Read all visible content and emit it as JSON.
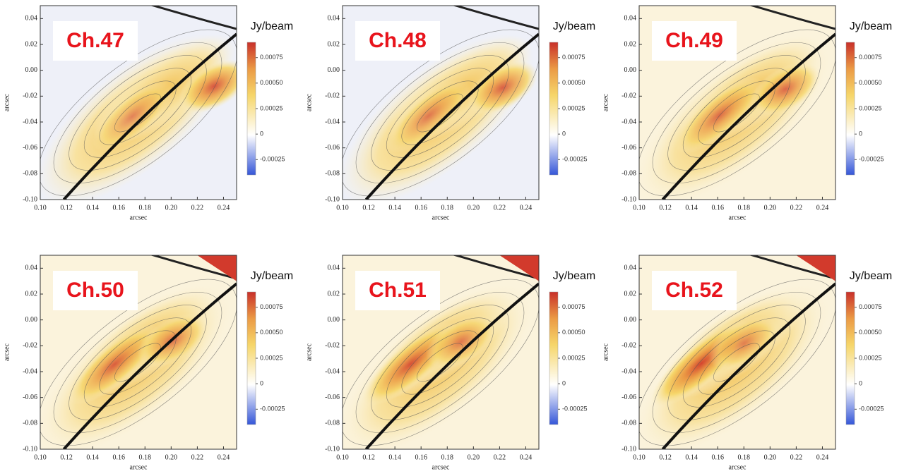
{
  "chart_data": [
    {
      "type": "contour",
      "title": "Ch.47",
      "xlabel": "arcsec",
      "ylabel": "arcsec",
      "colorbar_label": "Jy/beam",
      "xlim": [
        0.1,
        0.25
      ],
      "xticks": [
        {
          "value": 0.1,
          "label": "0.10"
        },
        0.12,
        0.14,
        0.16,
        0.18,
        {
          "value": 0.2,
          "label": "0.20"
        },
        0.22,
        0.24
      ],
      "ylim": [
        -0.1,
        0.05
      ],
      "yticks": [
        {
          "value": -0.1,
          "label": "-0.10"
        },
        -0.08,
        -0.06,
        -0.04,
        -0.02,
        {
          "value": 0,
          "label": "0.00"
        },
        0.02,
        0.04
      ],
      "clim": [
        -0.0004,
        0.0009
      ],
      "cticks": [
        -0.00025,
        0,
        0.00025,
        {
          "value": 0.0005,
          "label": "0.00050"
        },
        0.00075
      ]
    },
    {
      "type": "contour",
      "title": "Ch.48",
      "xlabel": "arcsec",
      "ylabel": "arcsec",
      "colorbar_label": "Jy/beam",
      "xlim": [
        0.1,
        0.25
      ],
      "xticks": [
        {
          "value": 0.1,
          "label": "0.10"
        },
        0.12,
        0.14,
        0.16,
        0.18,
        {
          "value": 0.2,
          "label": "0.20"
        },
        0.22,
        0.24
      ],
      "ylim": [
        -0.1,
        0.05
      ],
      "yticks": [
        {
          "value": -0.1,
          "label": "-0.10"
        },
        -0.08,
        -0.06,
        -0.04,
        -0.02,
        {
          "value": 0,
          "label": "0.00"
        },
        0.02,
        0.04
      ],
      "clim": [
        -0.0004,
        0.0009
      ],
      "cticks": [
        -0.00025,
        0,
        0.00025,
        {
          "value": 0.0005,
          "label": "0.00050"
        },
        0.00075
      ]
    },
    {
      "type": "contour",
      "title": "Ch.49",
      "xlabel": "arcsec",
      "ylabel": "arcsec",
      "colorbar_label": "Jy/beam",
      "xlim": [
        0.1,
        0.25
      ],
      "xticks": [
        {
          "value": 0.1,
          "label": "0.10"
        },
        0.12,
        0.14,
        0.16,
        0.18,
        {
          "value": 0.2,
          "label": "0.20"
        },
        0.22,
        0.24
      ],
      "ylim": [
        -0.1,
        0.05
      ],
      "yticks": [
        {
          "value": -0.1,
          "label": "-0.10"
        },
        -0.08,
        -0.06,
        -0.04,
        -0.02,
        {
          "value": 0,
          "label": "0.00"
        },
        0.02,
        0.04
      ],
      "clim": [
        -0.0004,
        0.0009
      ],
      "cticks": [
        -0.00025,
        0,
        0.00025,
        {
          "value": 0.0005,
          "label": "0.00050"
        },
        0.00075
      ]
    },
    {
      "type": "contour",
      "title": "Ch.50",
      "xlabel": "arcsec",
      "ylabel": "arcsec",
      "colorbar_label": "Jy/beam",
      "xlim": [
        0.1,
        0.25
      ],
      "xticks": [
        {
          "value": 0.1,
          "label": "0.10"
        },
        0.12,
        0.14,
        0.16,
        0.18,
        {
          "value": 0.2,
          "label": "0.20"
        },
        0.22,
        0.24
      ],
      "ylim": [
        -0.1,
        0.05
      ],
      "yticks": [
        {
          "value": -0.1,
          "label": "-0.10"
        },
        -0.08,
        -0.06,
        -0.04,
        -0.02,
        {
          "value": 0,
          "label": "0.00"
        },
        0.02,
        0.04
      ],
      "clim": [
        -0.0004,
        0.0009
      ],
      "cticks": [
        -0.00025,
        0,
        0.00025,
        {
          "value": 0.0005,
          "label": "0.00050"
        },
        0.00075
      ]
    },
    {
      "type": "contour",
      "title": "Ch.51",
      "xlabel": "arcsec",
      "ylabel": "arcsec",
      "colorbar_label": "Jy/beam",
      "xlim": [
        0.1,
        0.25
      ],
      "xticks": [
        {
          "value": 0.1,
          "label": "0.10"
        },
        0.12,
        0.14,
        0.16,
        0.18,
        {
          "value": 0.2,
          "label": "0.20"
        },
        0.22,
        0.24
      ],
      "ylim": [
        -0.1,
        0.05
      ],
      "yticks": [
        {
          "value": -0.1,
          "label": "-0.10"
        },
        -0.08,
        -0.06,
        -0.04,
        -0.02,
        {
          "value": 0,
          "label": "0.00"
        },
        0.02,
        0.04
      ],
      "clim": [
        -0.0004,
        0.0009
      ],
      "cticks": [
        -0.00025,
        0,
        0.00025,
        {
          "value": 0.0005,
          "label": "0.00050"
        },
        0.00075
      ]
    },
    {
      "type": "contour",
      "title": "Ch.52",
      "xlabel": "arcsec",
      "ylabel": "arcsec",
      "colorbar_label": "Jy/beam",
      "xlim": [
        0.1,
        0.25
      ],
      "xticks": [
        {
          "value": 0.1,
          "label": "0.10"
        },
        0.12,
        0.14,
        0.16,
        0.18,
        {
          "value": 0.2,
          "label": "0.20"
        },
        0.22,
        0.24
      ],
      "ylim": [
        -0.1,
        0.05
      ],
      "yticks": [
        {
          "value": -0.1,
          "label": "-0.10"
        },
        -0.08,
        -0.06,
        -0.04,
        -0.02,
        {
          "value": 0,
          "label": "0.00"
        },
        0.02,
        0.04
      ],
      "clim": [
        -0.0004,
        0.0009
      ],
      "cticks": [
        -0.00025,
        0,
        0.00025,
        {
          "value": 0.0005,
          "label": "0.00050"
        },
        0.00075
      ]
    }
  ]
}
